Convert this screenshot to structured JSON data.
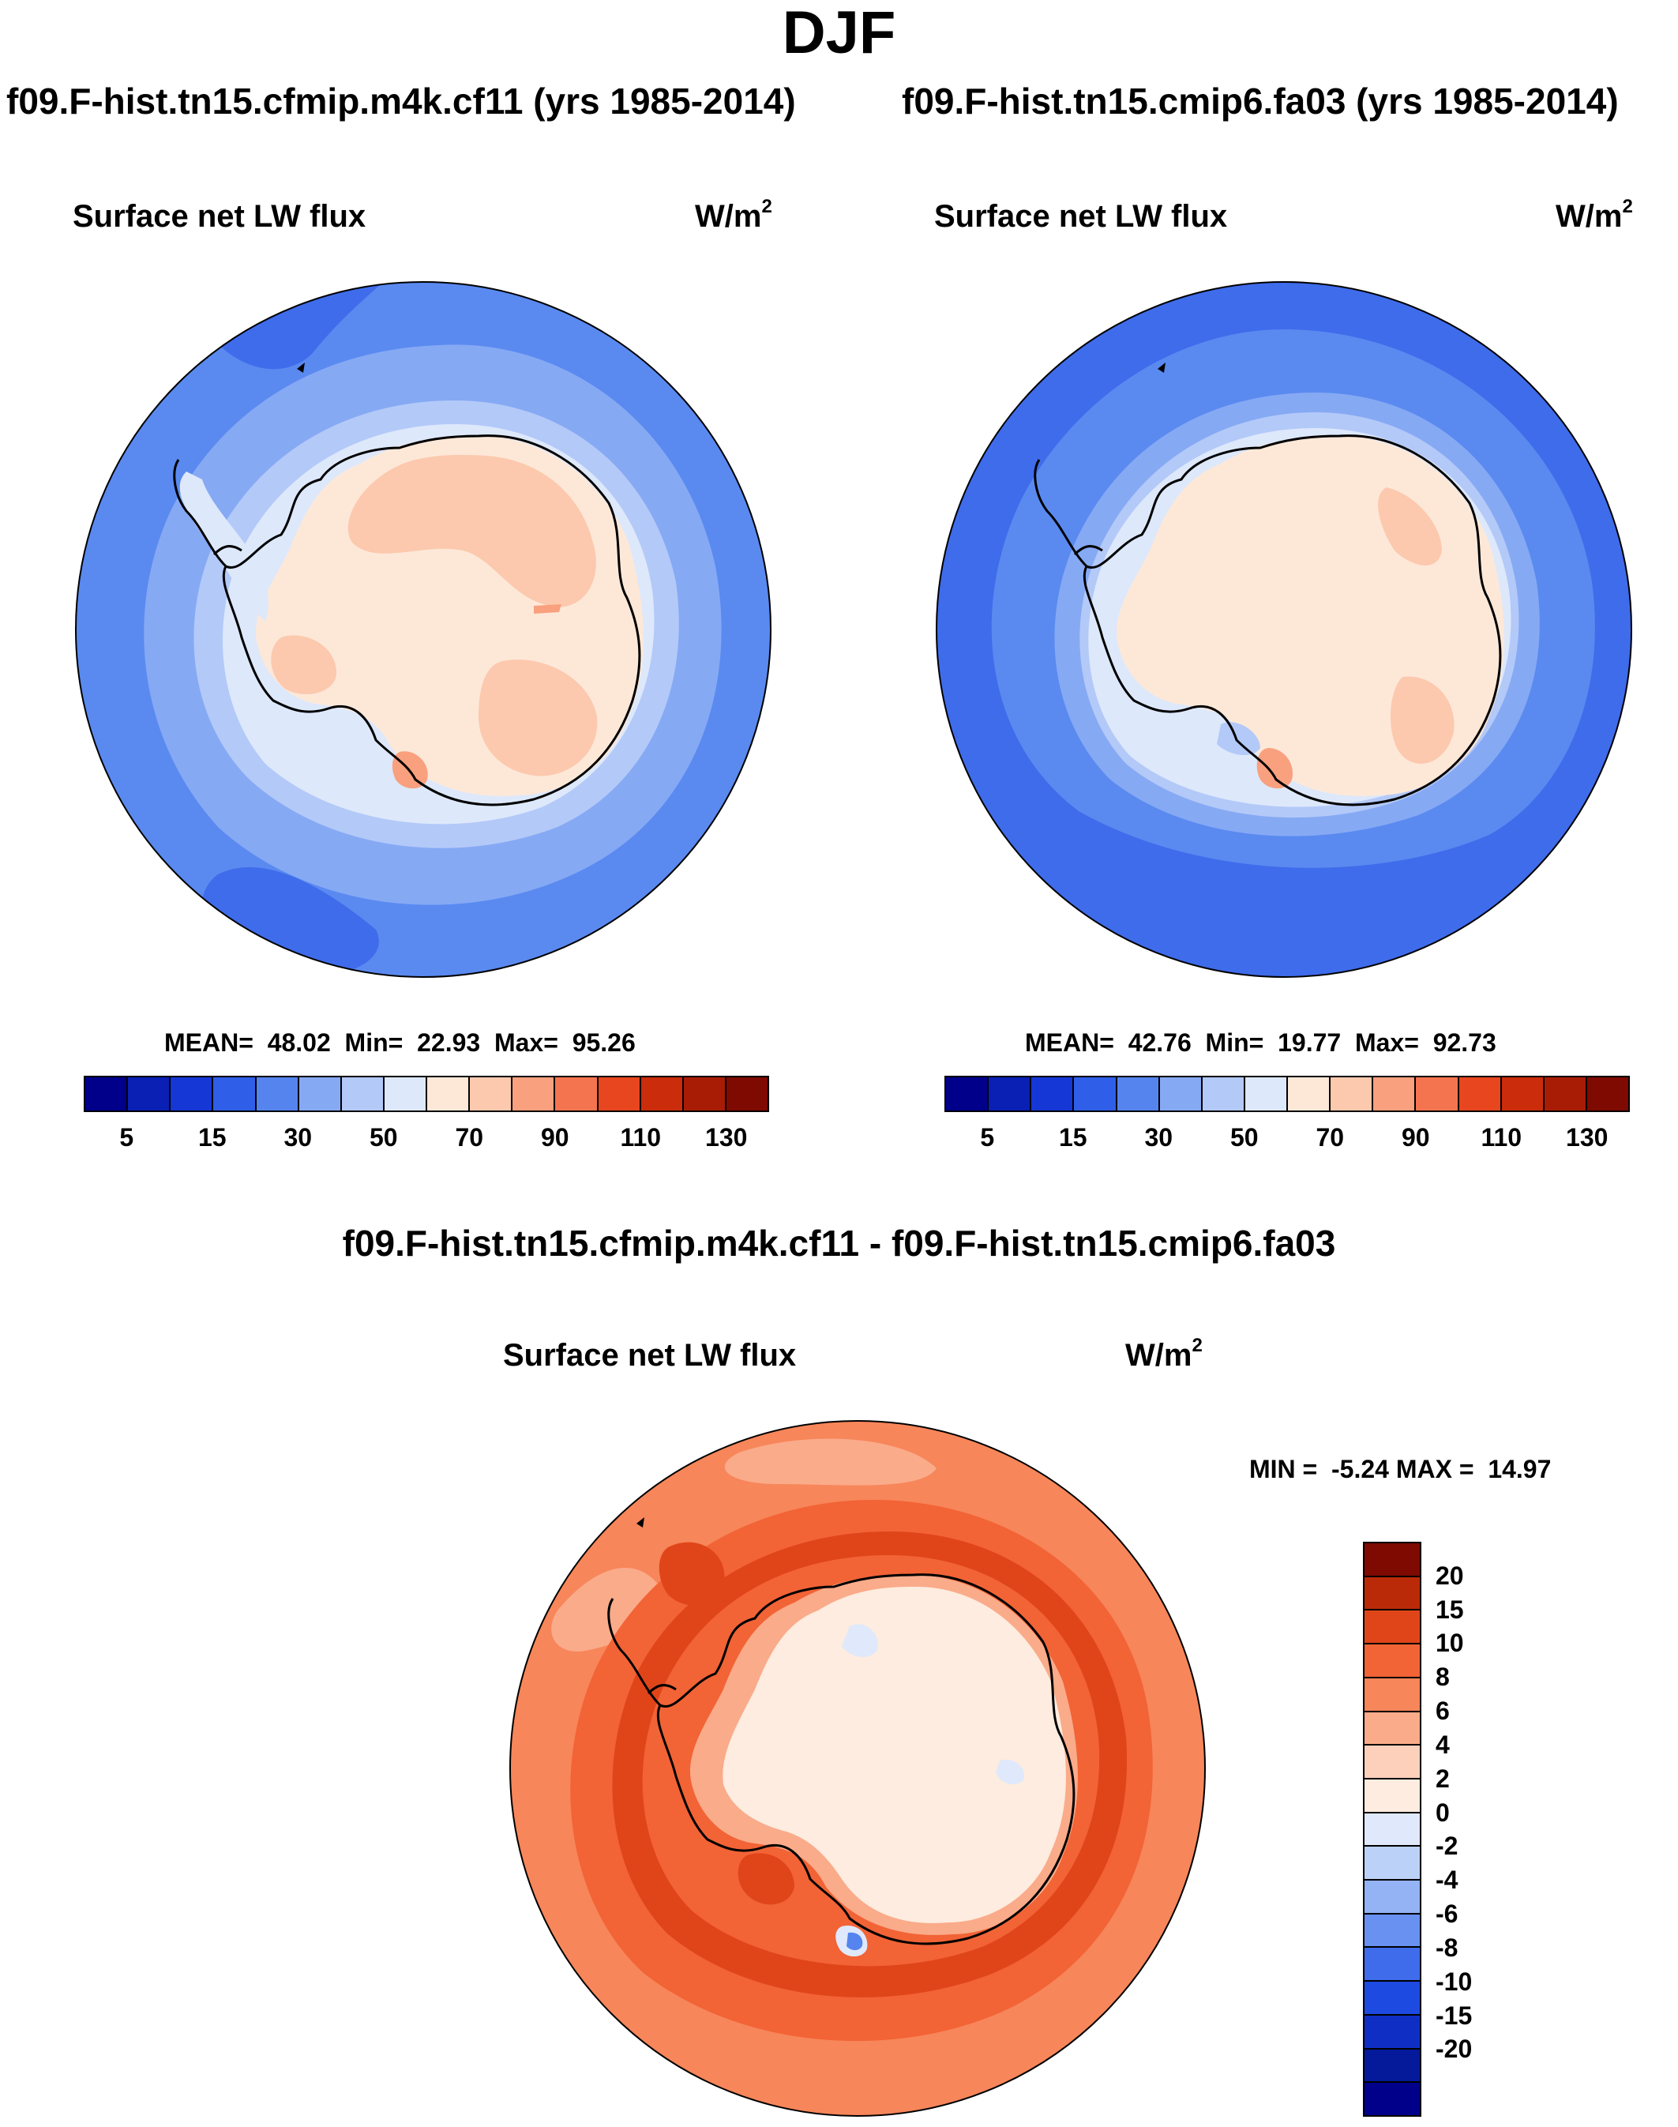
{
  "figure": {
    "season": "DJF",
    "units_base": "W/m",
    "units_exp": "2",
    "variable": "Surface net LW flux"
  },
  "panels": [
    {
      "case": "f09.F-hist.tn15.cfmip.m4k.cf11 (yrs 1985-2014)",
      "title": "Surface net LW flux",
      "stats": "MEAN=  48.02  Min=  22.93  Max=  95.26"
    },
    {
      "case": "f09.F-hist.tn15.cmip6.fa03 (yrs 1985-2014)",
      "title": "Surface net LW flux",
      "stats": "MEAN=  42.76  Min=  19.77  Max=  92.73"
    }
  ],
  "difference": {
    "case": "f09.F-hist.tn15.cfmip.m4k.cf11 - f09.F-hist.tn15.cmip6.fa03",
    "title": "Surface net LW flux",
    "stats": "MIN =  -5.24 MAX =  14.97"
  },
  "colorbar_main": {
    "colors": [
      "#00008b",
      "#0a1fb4",
      "#1537d6",
      "#2f5ee8",
      "#5584ef",
      "#86a9f4",
      "#b3c9f8",
      "#dde8fb",
      "#fde8d8",
      "#fcc9ae",
      "#f9a07e",
      "#f57450",
      "#e7461f",
      "#cb2c0b",
      "#a81c06",
      "#7e0a02"
    ],
    "tick_labels": [
      "5",
      "15",
      "30",
      "50",
      "70",
      "90",
      "110",
      "130"
    ]
  },
  "colorbar_diff": {
    "colors": [
      "#7e0a02",
      "#bb2a08",
      "#e0451a",
      "#f26336",
      "#f7865a",
      "#faab8a",
      "#fcd0bb",
      "#fdecdf",
      "#dfe9fb",
      "#bcd1f8",
      "#93b3f5",
      "#6991f1",
      "#3f6ceb",
      "#1d4ae0",
      "#0f2fc4",
      "#041a9a",
      "#00008b"
    ],
    "tick_labels": [
      "20",
      "15",
      "10",
      "8",
      "6",
      "4",
      "2",
      "0",
      "-2",
      "-4",
      "-6",
      "-8",
      "-10",
      "-15",
      "-20"
    ]
  },
  "map_colors": {
    "main_ocean_outer": "#5a8af0",
    "main_ocean_deep": "#3f6ceb",
    "main_ocean_mid": "#86a9f4",
    "main_ocean_inner": "#b3c9f8",
    "main_ice_edge": "#dde8fb",
    "main_land_low": "#fde8d8",
    "main_land_high": "#fcc9ae",
    "main_land_hot": "#f9a07e",
    "diff_outer": "#f7865a",
    "diff_ring": "#f26336",
    "diff_ring_hot": "#e0451a",
    "diff_inner": "#faab8a",
    "diff_land": "#fdecdf",
    "diff_land_blue": "#dfe9fb",
    "diff_blue_spot": "#5584ef"
  }
}
